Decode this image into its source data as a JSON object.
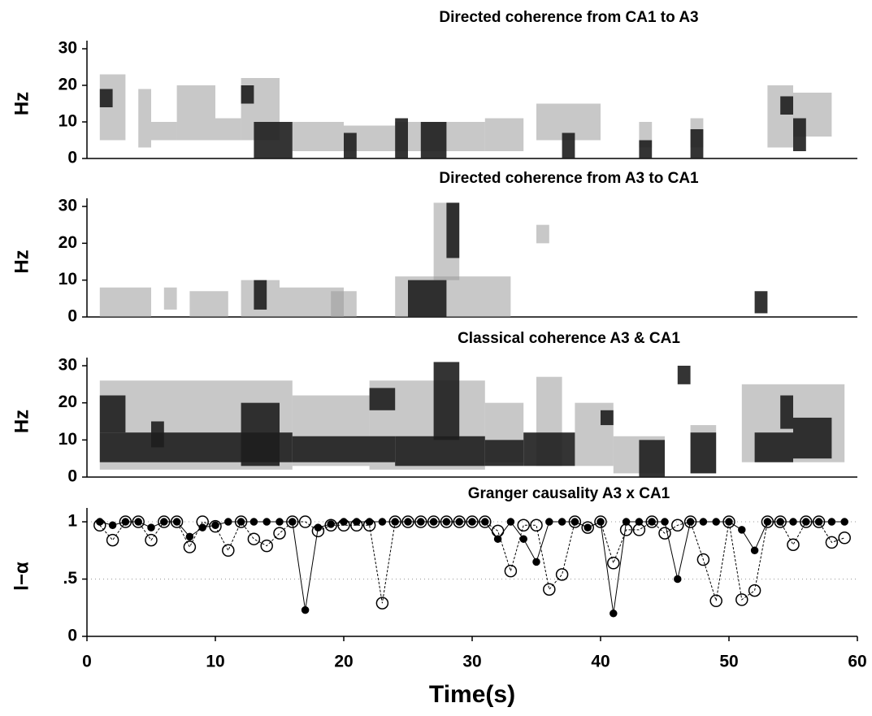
{
  "chart_data": [
    {
      "type": "heatmap",
      "title": "Directed coherence from CA1 to A3",
      "ylabel": "Hz",
      "xlim": [
        0,
        60
      ],
      "ylim": [
        0,
        30
      ],
      "yticks": [
        0,
        10,
        20,
        30
      ],
      "layers": [
        {
          "color": "#9a9a9a",
          "patches": [
            [
              1,
              3,
              5,
              23
            ],
            [
              4,
              5,
              3,
              19
            ],
            [
              5,
              7,
              5,
              10
            ],
            [
              7,
              10,
              5,
              20
            ],
            [
              10,
              12,
              5,
              11
            ],
            [
              12,
              15,
              5,
              22
            ],
            [
              16,
              20,
              2,
              10
            ],
            [
              20,
              24,
              2,
              9
            ],
            [
              24,
              31,
              2,
              10
            ],
            [
              31,
              34,
              2,
              11
            ],
            [
              35,
              40,
              5,
              15
            ],
            [
              43,
              44,
              3,
              10
            ],
            [
              47,
              48,
              3,
              11
            ],
            [
              53,
              55,
              3,
              20
            ],
            [
              55,
              58,
              6,
              18
            ]
          ]
        },
        {
          "color": "#1e1e1e",
          "patches": [
            [
              1,
              2,
              14,
              19
            ],
            [
              12,
              13,
              15,
              20
            ],
            [
              13,
              16,
              0,
              10
            ],
            [
              20,
              21,
              0,
              7
            ],
            [
              24,
              25,
              0,
              11
            ],
            [
              26,
              28,
              0,
              10
            ],
            [
              37,
              38,
              0,
              7
            ],
            [
              43,
              44,
              0,
              5
            ],
            [
              47,
              48,
              0,
              8
            ],
            [
              54,
              55,
              12,
              17
            ],
            [
              55,
              56,
              2,
              11
            ]
          ]
        }
      ]
    },
    {
      "type": "heatmap",
      "title": "Directed coherence from A3 to CA1",
      "ylabel": "Hz",
      "xlim": [
        0,
        60
      ],
      "ylim": [
        0,
        30
      ],
      "yticks": [
        0,
        10,
        20,
        30
      ],
      "layers": [
        {
          "color": "#9a9a9a",
          "patches": [
            [
              1,
              5,
              0,
              8
            ],
            [
              6,
              7,
              2,
              8
            ],
            [
              8,
              11,
              0,
              7
            ],
            [
              12,
              15,
              0,
              10
            ],
            [
              15,
              20,
              0,
              8
            ],
            [
              19,
              21,
              0,
              7
            ],
            [
              24,
              33,
              0,
              11
            ],
            [
              27,
              29,
              10,
              31
            ],
            [
              35,
              36,
              20,
              25
            ]
          ]
        },
        {
          "color": "#1e1e1e",
          "patches": [
            [
              13,
              14,
              2,
              10
            ],
            [
              25,
              28,
              0,
              10
            ],
            [
              28,
              29,
              16,
              31
            ],
            [
              52,
              53,
              1,
              7
            ]
          ]
        }
      ]
    },
    {
      "type": "heatmap",
      "title": "Classical coherence A3 & CA1",
      "ylabel": "Hz",
      "xlim": [
        0,
        60
      ],
      "ylim": [
        0,
        30
      ],
      "yticks": [
        0,
        10,
        20,
        30
      ],
      "layers": [
        {
          "color": "#9a9a9a",
          "patches": [
            [
              1,
              16,
              2,
              26
            ],
            [
              16,
              22,
              3,
              22
            ],
            [
              22,
              31,
              2,
              26
            ],
            [
              31,
              34,
              4,
              20
            ],
            [
              35,
              37,
              3,
              27
            ],
            [
              38,
              41,
              3,
              20
            ],
            [
              41,
              45,
              1,
              11
            ],
            [
              47,
              49,
              1,
              14
            ],
            [
              51,
              59,
              4,
              25
            ]
          ]
        },
        {
          "color": "#1e1e1e",
          "patches": [
            [
              1,
              16,
              4,
              12
            ],
            [
              1,
              3,
              12,
              22
            ],
            [
              5,
              6,
              8,
              15
            ],
            [
              12,
              15,
              3,
              20
            ],
            [
              16,
              24,
              4,
              11
            ],
            [
              22,
              24,
              18,
              24
            ],
            [
              24,
              31,
              3,
              11
            ],
            [
              27,
              29,
              10,
              31
            ],
            [
              31,
              34,
              3,
              10
            ],
            [
              34,
              38,
              3,
              12
            ],
            [
              40,
              41,
              14,
              18
            ],
            [
              43,
              45,
              0,
              10
            ],
            [
              46,
              47,
              25,
              30
            ],
            [
              47,
              49,
              1,
              12
            ],
            [
              52,
              55,
              4,
              12
            ],
            [
              54,
              55,
              13,
              22
            ],
            [
              55,
              58,
              5,
              16
            ]
          ]
        }
      ]
    },
    {
      "type": "line",
      "title": "Granger causality A3 x CA1",
      "ylabel": "l−α",
      "xlabel": "Time(s)",
      "xlim": [
        0,
        60
      ],
      "ylim": [
        0,
        1.05
      ],
      "xticks": [
        0,
        10,
        20,
        30,
        40,
        50,
        60
      ],
      "yticks": [
        0,
        {
          "value": 0.5,
          "label": ".5"
        },
        1
      ],
      "grid": true,
      "x": [
        1,
        2,
        3,
        4,
        5,
        6,
        7,
        8,
        9,
        10,
        11,
        12,
        13,
        14,
        15,
        16,
        17,
        18,
        19,
        20,
        21,
        22,
        23,
        24,
        25,
        26,
        27,
        28,
        29,
        30,
        31,
        32,
        33,
        34,
        35,
        36,
        37,
        38,
        39,
        40,
        41,
        42,
        43,
        44,
        45,
        46,
        47,
        48,
        49,
        50,
        51,
        52,
        53,
        54,
        55,
        56,
        57,
        58,
        59
      ],
      "series": [
        {
          "marker": "filled",
          "color": "#000000",
          "values": [
            1,
            0.97,
            1,
            1,
            0.95,
            1,
            1,
            0.87,
            0.95,
            0.97,
            1,
            1,
            1,
            1,
            1,
            1,
            0.23,
            0.95,
            0.98,
            1,
            1,
            1,
            1,
            1,
            1,
            1,
            1,
            1,
            1,
            1,
            1,
            0.85,
            1,
            0.85,
            0.65,
            1,
            1,
            1,
            0.95,
            1,
            0.2,
            1,
            1,
            1,
            1,
            0.5,
            1,
            1,
            1,
            1,
            0.93,
            0.75,
            1,
            1,
            1,
            1,
            1,
            1,
            1
          ]
        },
        {
          "marker": "open",
          "color": "#000000",
          "values": [
            0.97,
            0.84,
            1,
            1,
            0.84,
            1,
            1,
            0.78,
            1,
            0.96,
            0.75,
            1,
            0.85,
            0.79,
            0.9,
            1,
            1,
            0.92,
            0.97,
            0.97,
            0.97,
            0.97,
            0.29,
            1,
            1,
            1,
            1,
            1,
            1,
            1,
            1,
            0.92,
            0.57,
            0.97,
            0.97,
            0.41,
            0.54,
            1,
            0.95,
            1,
            0.64,
            0.93,
            0.93,
            1,
            0.9,
            0.97,
            1,
            0.67,
            0.31,
            1,
            0.32,
            0.4,
            1,
            1,
            0.8,
            1,
            1,
            0.82,
            0.86
          ]
        }
      ]
    }
  ]
}
